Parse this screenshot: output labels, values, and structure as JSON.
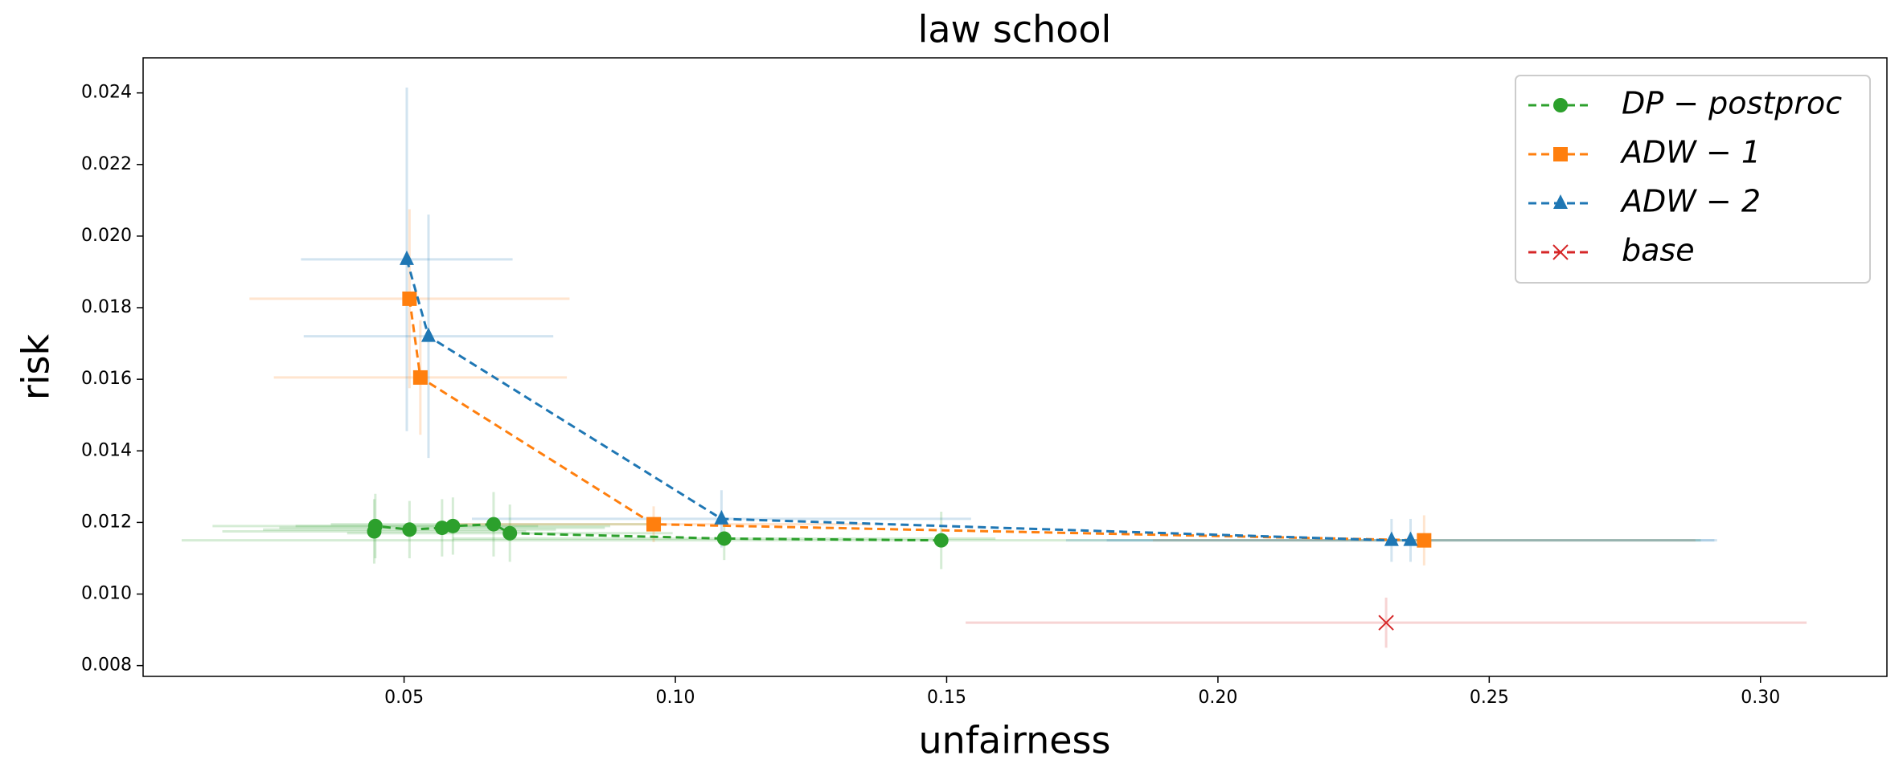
{
  "chart_data": {
    "type": "errorbar-line",
    "title": "law school",
    "xlabel": "unfairness",
    "ylabel": "risk",
    "xlim": [
      0.0019,
      0.3233
    ],
    "ylim": [
      0.0077,
      0.02498
    ],
    "xticks": [
      0.05,
      {
        "value": 0.1,
        "label": "0.10"
      },
      0.15,
      {
        "value": 0.2,
        "label": "0.20"
      },
      0.25,
      {
        "value": 0.3,
        "label": "0.30"
      }
    ],
    "yticks": [
      0.008,
      {
        "value": 0.01,
        "label": "0.010"
      },
      0.012,
      0.014,
      0.016,
      0.018,
      {
        "value": 0.02,
        "label": "0.020"
      },
      0.022,
      0.024
    ],
    "legend": "upper right",
    "series": [
      {
        "name": "DP − postproc",
        "color": "#2ca02c",
        "marker": "circle",
        "x": [
          0.0445,
          0.0447,
          0.051,
          0.057,
          0.059,
          0.0665,
          0.0695,
          0.109,
          0.149
        ],
        "values": [
          0.01175,
          0.0119,
          0.0118,
          0.01185,
          0.0119,
          0.01195,
          0.0117,
          0.01155,
          0.0115
        ],
        "xerr": [
          0.028,
          0.03,
          0.027,
          0.03,
          0.029,
          0.03,
          0.03,
          0.05,
          0.14
        ],
        "yerr": [
          0.0009,
          0.0009,
          0.0008,
          0.0008,
          0.0008,
          0.0009,
          0.0008,
          0.0006,
          0.0008
        ]
      },
      {
        "name": "ADW − 1",
        "color": "#ff7f0e",
        "marker": "square",
        "x": [
          0.051,
          0.053,
          0.096,
          0.238
        ],
        "values": [
          0.01825,
          0.01605,
          0.01195,
          0.0115
        ],
        "xerr": [
          0.0295,
          0.027,
          0.04,
          0.05
        ],
        "yerr": [
          0.0025,
          0.0016,
          0.0005,
          0.0007
        ]
      },
      {
        "name": "ADW − 2",
        "color": "#1f77b4",
        "marker": "triangle",
        "x": [
          0.0505,
          0.0545,
          0.1085,
          0.232,
          0.2355
        ],
        "values": [
          0.01935,
          0.0172,
          0.0121,
          0.0115,
          0.0115
        ],
        "xerr": [
          0.0195,
          0.023,
          0.046,
          0.06,
          0.056
        ],
        "yerr": [
          0.0048,
          0.0034,
          0.0008,
          0.0006,
          0.0006
        ]
      },
      {
        "name": "base",
        "color": "#d62728",
        "marker": "x",
        "x": [
          0.231
        ],
        "values": [
          0.0092
        ],
        "xerr": [
          0.0775
        ],
        "yerr": [
          0.0007
        ]
      }
    ]
  }
}
